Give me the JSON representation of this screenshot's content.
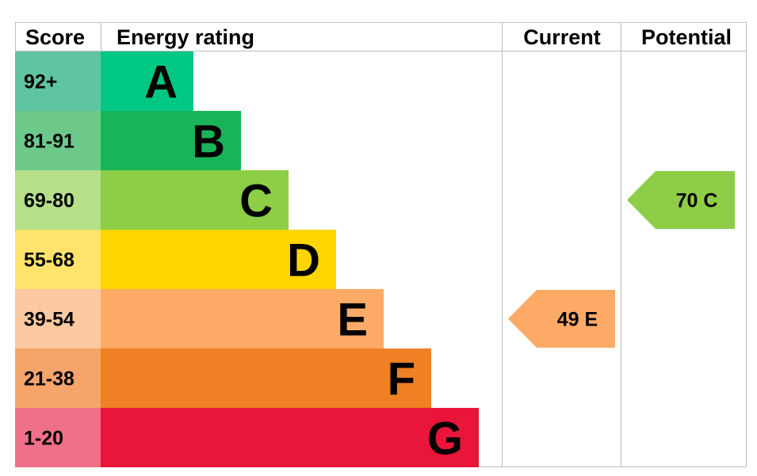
{
  "headers": {
    "score": "Score",
    "energy_rating": "Energy rating",
    "current": "Current",
    "potential": "Potential"
  },
  "chart_data": {
    "type": "bar",
    "bands": [
      {
        "score": "92+",
        "letter": "A",
        "color": "#00c781",
        "light": "#5fc5a0"
      },
      {
        "score": "81-91",
        "letter": "B",
        "color": "#19b459",
        "light": "#6cc98a"
      },
      {
        "score": "69-80",
        "letter": "C",
        "color": "#8dce46",
        "light": "#b5df89"
      },
      {
        "score": "55-68",
        "letter": "D",
        "color": "#ffd500",
        "light": "#ffe36b"
      },
      {
        "score": "39-54",
        "letter": "E",
        "color": "#fcaa65",
        "light": "#fdc9a0"
      },
      {
        "score": "21-38",
        "letter": "F",
        "color": "#ef8023",
        "light": "#f5a46a"
      },
      {
        "score": "1-20",
        "letter": "G",
        "color": "#e9153b",
        "light": "#ef7088"
      }
    ],
    "current": {
      "value": 49,
      "letter": "E",
      "label": "49  E",
      "color": "#fcaa65"
    },
    "potential": {
      "value": 70,
      "letter": "C",
      "label": "70  C",
      "color": "#8dce46"
    }
  }
}
